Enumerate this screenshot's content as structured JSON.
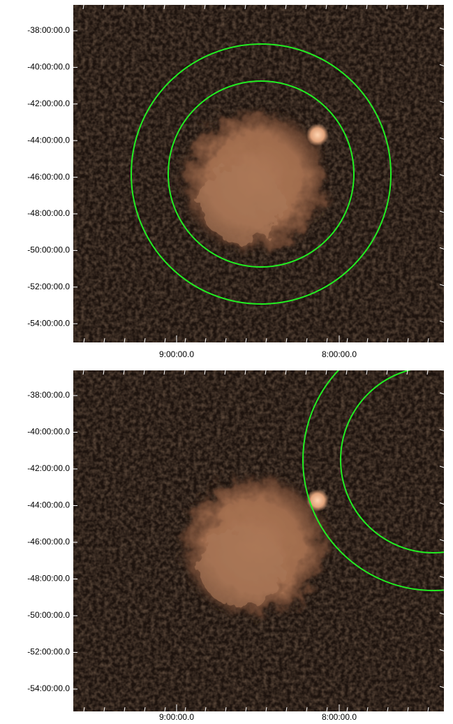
{
  "panels": [
    {
      "y_labels": [
        "-38:00:00.0",
        "-40:00:00.0",
        "-42:00:00.0",
        "-44:00:00.0",
        "-46:00:00.0",
        "-48:00:00.0",
        "-50:00:00.0",
        "-52:00:00.0",
        "-54:00:00.0"
      ],
      "x_labels": [
        "9:00:00.0",
        "8:00:00.0"
      ]
    },
    {
      "y_labels": [
        "-38:00:00.0",
        "-40:00:00.0",
        "-42:00:00.0",
        "-44:00:00.0",
        "-46:00:00.0",
        "-48:00:00.0",
        "-50:00:00.0",
        "-52:00:00.0",
        "-54:00:00.0"
      ],
      "x_labels": [
        "9:00:00.0",
        "8:00:00.0"
      ]
    }
  ]
}
